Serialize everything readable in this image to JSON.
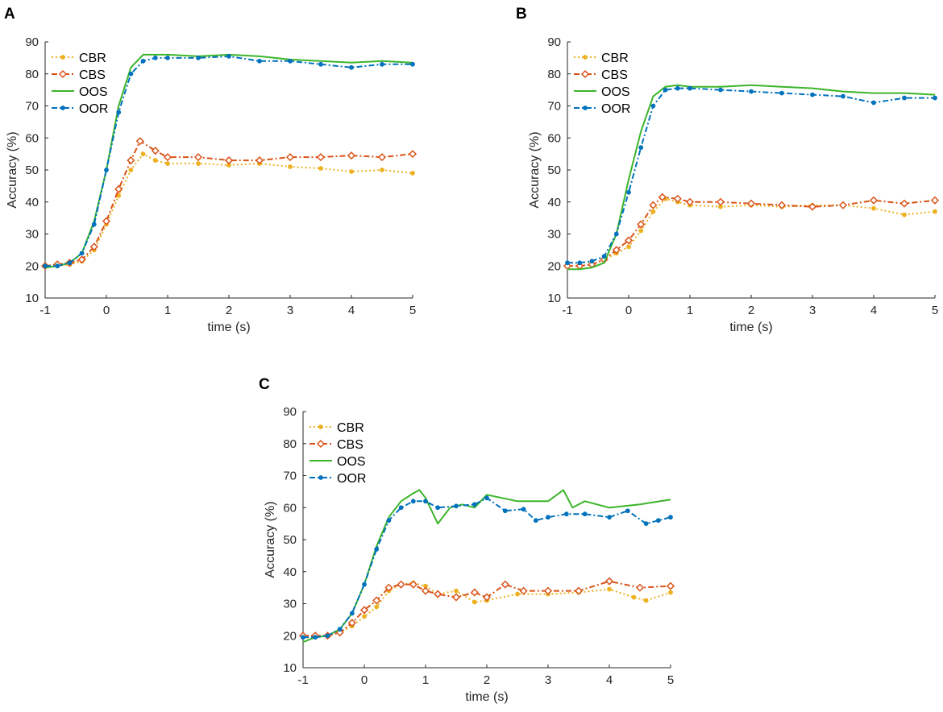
{
  "chart_data": [
    {
      "panel": "A",
      "type": "line",
      "title": "",
      "xlabel": "time (s)",
      "ylabel": "Accuracy (%)",
      "xlim": [
        -1,
        5
      ],
      "ylim": [
        10,
        90
      ],
      "xticks": [
        "-1",
        "0",
        "1",
        "2",
        "3",
        "4",
        "5"
      ],
      "yticks": [
        "10",
        "20",
        "30",
        "40",
        "50",
        "60",
        "70",
        "80",
        "90"
      ],
      "legend_position": "top-left",
      "series": [
        {
          "name": "CBR",
          "color": "#EDB120",
          "style": "dotted",
          "marker": "dot",
          "points": [
            [
              -1,
              20
            ],
            [
              -0.8,
              20
            ],
            [
              -0.6,
              20.5
            ],
            [
              -0.4,
              21.5
            ],
            [
              -0.2,
              25
            ],
            [
              0,
              33
            ],
            [
              0.2,
              42
            ],
            [
              0.4,
              50
            ],
            [
              0.6,
              55
            ],
            [
              0.8,
              53
            ],
            [
              1,
              52
            ],
            [
              1.5,
              52
            ],
            [
              2,
              51.5
            ],
            [
              2.5,
              52
            ],
            [
              3,
              51
            ],
            [
              3.5,
              50.5
            ],
            [
              4,
              49.5
            ],
            [
              4.5,
              50
            ],
            [
              5,
              49
            ]
          ]
        },
        {
          "name": "CBS",
          "color": "#D95319",
          "style": "dashdot",
          "marker": "diamond",
          "points": [
            [
              -1,
              20
            ],
            [
              -0.8,
              20.5
            ],
            [
              -0.6,
              21
            ],
            [
              -0.4,
              22
            ],
            [
              -0.2,
              26
            ],
            [
              0,
              34
            ],
            [
              0.2,
              44
            ],
            [
              0.4,
              53
            ],
            [
              0.55,
              59
            ],
            [
              0.8,
              56
            ],
            [
              1,
              54
            ],
            [
              1.5,
              54
            ],
            [
              2,
              53
            ],
            [
              2.5,
              53
            ],
            [
              3,
              54
            ],
            [
              3.5,
              54
            ],
            [
              4,
              54.5
            ],
            [
              4.5,
              54
            ],
            [
              5,
              55
            ]
          ]
        },
        {
          "name": "OOS",
          "color": "#3CB52A",
          "style": "solid",
          "marker": "none",
          "points": [
            [
              -1,
              19.5
            ],
            [
              -0.8,
              20
            ],
            [
              -0.6,
              21
            ],
            [
              -0.4,
              24
            ],
            [
              -0.2,
              34
            ],
            [
              0,
              50
            ],
            [
              0.2,
              70
            ],
            [
              0.4,
              82
            ],
            [
              0.6,
              86
            ],
            [
              0.8,
              86
            ],
            [
              1,
              86
            ],
            [
              1.5,
              85.5
            ],
            [
              2,
              86
            ],
            [
              2.5,
              85.5
            ],
            [
              3,
              84.5
            ],
            [
              3.5,
              84
            ],
            [
              4,
              83.5
            ],
            [
              4.5,
              84
            ],
            [
              5,
              83.5
            ]
          ]
        },
        {
          "name": "OOR",
          "color": "#0072BD",
          "style": "dashdot",
          "marker": "dot",
          "points": [
            [
              -1,
              20
            ],
            [
              -0.8,
              20
            ],
            [
              -0.6,
              21
            ],
            [
              -0.4,
              24
            ],
            [
              -0.2,
              33
            ],
            [
              0,
              50
            ],
            [
              0.2,
              68
            ],
            [
              0.4,
              80
            ],
            [
              0.6,
              84
            ],
            [
              0.8,
              85
            ],
            [
              1,
              85
            ],
            [
              1.5,
              85
            ],
            [
              2,
              85.5
            ],
            [
              2.5,
              84
            ],
            [
              3,
              84
            ],
            [
              3.5,
              83
            ],
            [
              4,
              82
            ],
            [
              4.5,
              83
            ],
            [
              5,
              83
            ]
          ]
        }
      ]
    },
    {
      "panel": "B",
      "type": "line",
      "title": "",
      "xlabel": "time (s)",
      "ylabel": "Accuracy (%)",
      "xlim": [
        -1,
        5
      ],
      "ylim": [
        10,
        90
      ],
      "xticks": [
        "-1",
        "0",
        "1",
        "2",
        "3",
        "4",
        "5"
      ],
      "yticks": [
        "10",
        "20",
        "30",
        "40",
        "50",
        "60",
        "70",
        "80",
        "90"
      ],
      "legend_position": "top-right",
      "series": [
        {
          "name": "CBR",
          "color": "#EDB120",
          "style": "dotted",
          "marker": "dot",
          "points": [
            [
              -1,
              20
            ],
            [
              -0.8,
              20
            ],
            [
              -0.6,
              20.5
            ],
            [
              -0.4,
              22
            ],
            [
              -0.2,
              24
            ],
            [
              0,
              26
            ],
            [
              0.2,
              31
            ],
            [
              0.4,
              37
            ],
            [
              0.6,
              41
            ],
            [
              0.8,
              40
            ],
            [
              1,
              39
            ],
            [
              1.5,
              38.5
            ],
            [
              2,
              39
            ],
            [
              2.5,
              38.5
            ],
            [
              3,
              39
            ],
            [
              3.5,
              39
            ],
            [
              4,
              38
            ],
            [
              4.5,
              36
            ],
            [
              5,
              37
            ]
          ]
        },
        {
          "name": "CBS",
          "color": "#D95319",
          "style": "dashdot",
          "marker": "diamond",
          "points": [
            [
              -1,
              20
            ],
            [
              -0.8,
              20
            ],
            [
              -0.6,
              20.5
            ],
            [
              -0.4,
              22
            ],
            [
              -0.2,
              25
            ],
            [
              0,
              28
            ],
            [
              0.2,
              33
            ],
            [
              0.4,
              39
            ],
            [
              0.55,
              41.5
            ],
            [
              0.8,
              41
            ],
            [
              1,
              40
            ],
            [
              1.5,
              40
            ],
            [
              2,
              39.5
            ],
            [
              2.5,
              39
            ],
            [
              3,
              38.5
            ],
            [
              3.5,
              39
            ],
            [
              4,
              40.5
            ],
            [
              4.5,
              39.5
            ],
            [
              5,
              40.5
            ]
          ]
        },
        {
          "name": "OOS",
          "color": "#3CB52A",
          "style": "solid",
          "marker": "none",
          "points": [
            [
              -1,
              19
            ],
            [
              -0.8,
              19
            ],
            [
              -0.6,
              19.5
            ],
            [
              -0.4,
              21
            ],
            [
              -0.2,
              30
            ],
            [
              0,
              47
            ],
            [
              0.2,
              62
            ],
            [
              0.4,
              73
            ],
            [
              0.6,
              76
            ],
            [
              0.8,
              76.5
            ],
            [
              1,
              76
            ],
            [
              1.5,
              76
            ],
            [
              2,
              76.5
            ],
            [
              2.5,
              76
            ],
            [
              3,
              75.5
            ],
            [
              3.5,
              74.5
            ],
            [
              4,
              74
            ],
            [
              4.5,
              74
            ],
            [
              5,
              73.5
            ]
          ]
        },
        {
          "name": "OOR",
          "color": "#0072BD",
          "style": "dashdot",
          "marker": "dot",
          "points": [
            [
              -1,
              21
            ],
            [
              -0.8,
              21
            ],
            [
              -0.6,
              21.5
            ],
            [
              -0.4,
              23
            ],
            [
              -0.2,
              30
            ],
            [
              0,
              43
            ],
            [
              0.2,
              57
            ],
            [
              0.4,
              70
            ],
            [
              0.6,
              75
            ],
            [
              0.8,
              75.5
            ],
            [
              1,
              75.5
            ],
            [
              1.5,
              75
            ],
            [
              2,
              74.5
            ],
            [
              2.5,
              74
            ],
            [
              3,
              73.5
            ],
            [
              3.5,
              73
            ],
            [
              4,
              71
            ],
            [
              4.5,
              72.5
            ],
            [
              5,
              72.5
            ]
          ]
        }
      ]
    },
    {
      "panel": "C",
      "type": "line",
      "title": "",
      "xlabel": "time (s)",
      "ylabel": "Accuracy (%)",
      "xlim": [
        -1,
        5
      ],
      "ylim": [
        10,
        90
      ],
      "xticks": [
        "-1",
        "0",
        "1",
        "2",
        "3",
        "4",
        "5"
      ],
      "yticks": [
        "10",
        "20",
        "30",
        "40",
        "50",
        "60",
        "70",
        "80",
        "90"
      ],
      "legend_position": "top-left",
      "series": [
        {
          "name": "CBR",
          "color": "#EDB120",
          "style": "dotted",
          "marker": "dot",
          "points": [
            [
              -1,
              19.5
            ],
            [
              -0.8,
              19.5
            ],
            [
              -0.6,
              20
            ],
            [
              -0.4,
              21
            ],
            [
              -0.2,
              23
            ],
            [
              0,
              26
            ],
            [
              0.2,
              29
            ],
            [
              0.4,
              34
            ],
            [
              0.6,
              36
            ],
            [
              0.8,
              36.5
            ],
            [
              1,
              35.5
            ],
            [
              1.2,
              33
            ],
            [
              1.5,
              34
            ],
            [
              1.8,
              30.5
            ],
            [
              2,
              31
            ],
            [
              2.5,
              33
            ],
            [
              3,
              33
            ],
            [
              3.5,
              33.5
            ],
            [
              4,
              34.5
            ],
            [
              4.4,
              32
            ],
            [
              4.6,
              31
            ],
            [
              5,
              33.5
            ]
          ]
        },
        {
          "name": "CBS",
          "color": "#D95319",
          "style": "dashdot",
          "marker": "diamond",
          "points": [
            [
              -1,
              20
            ],
            [
              -0.8,
              20
            ],
            [
              -0.6,
              20
            ],
            [
              -0.4,
              21
            ],
            [
              -0.2,
              24
            ],
            [
              0,
              28
            ],
            [
              0.2,
              31
            ],
            [
              0.4,
              35
            ],
            [
              0.6,
              36
            ],
            [
              0.8,
              36
            ],
            [
              1,
              34
            ],
            [
              1.2,
              33
            ],
            [
              1.5,
              32
            ],
            [
              1.8,
              33.5
            ],
            [
              2,
              32
            ],
            [
              2.3,
              36
            ],
            [
              2.6,
              34
            ],
            [
              3,
              34
            ],
            [
              3.5,
              34
            ],
            [
              4,
              37
            ],
            [
              4.5,
              35
            ],
            [
              5,
              35.5
            ]
          ]
        },
        {
          "name": "OOS",
          "color": "#3CB52A",
          "style": "solid",
          "marker": "none",
          "points": [
            [
              -1,
              18
            ],
            [
              -0.8,
              19.5
            ],
            [
              -0.6,
              20
            ],
            [
              -0.4,
              22
            ],
            [
              -0.2,
              27
            ],
            [
              0,
              36
            ],
            [
              0.2,
              48
            ],
            [
              0.4,
              57
            ],
            [
              0.6,
              62
            ],
            [
              0.8,
              64.5
            ],
            [
              0.9,
              65.5
            ],
            [
              1,
              63
            ],
            [
              1.2,
              55
            ],
            [
              1.4,
              60
            ],
            [
              1.6,
              61
            ],
            [
              1.8,
              60
            ],
            [
              2,
              64
            ],
            [
              2.5,
              62
            ],
            [
              3,
              62
            ],
            [
              3.25,
              65.5
            ],
            [
              3.4,
              60
            ],
            [
              3.6,
              62
            ],
            [
              4,
              60
            ],
            [
              4.5,
              61
            ],
            [
              5,
              62.5
            ]
          ]
        },
        {
          "name": "OOR",
          "color": "#0072BD",
          "style": "dashdot",
          "marker": "dot",
          "points": [
            [
              -1,
              19.5
            ],
            [
              -0.8,
              19.5
            ],
            [
              -0.6,
              20
            ],
            [
              -0.4,
              22
            ],
            [
              -0.2,
              27
            ],
            [
              0,
              36
            ],
            [
              0.2,
              47
            ],
            [
              0.4,
              56
            ],
            [
              0.6,
              60
            ],
            [
              0.8,
              62
            ],
            [
              1,
              62
            ],
            [
              1.2,
              60
            ],
            [
              1.5,
              60.5
            ],
            [
              1.8,
              61
            ],
            [
              2,
              63
            ],
            [
              2.3,
              59
            ],
            [
              2.6,
              59.5
            ],
            [
              2.8,
              56
            ],
            [
              3,
              57
            ],
            [
              3.3,
              58
            ],
            [
              3.6,
              58
            ],
            [
              4,
              57
            ],
            [
              4.3,
              59
            ],
            [
              4.6,
              55
            ],
            [
              4.8,
              56
            ],
            [
              5,
              57
            ]
          ]
        }
      ]
    }
  ]
}
